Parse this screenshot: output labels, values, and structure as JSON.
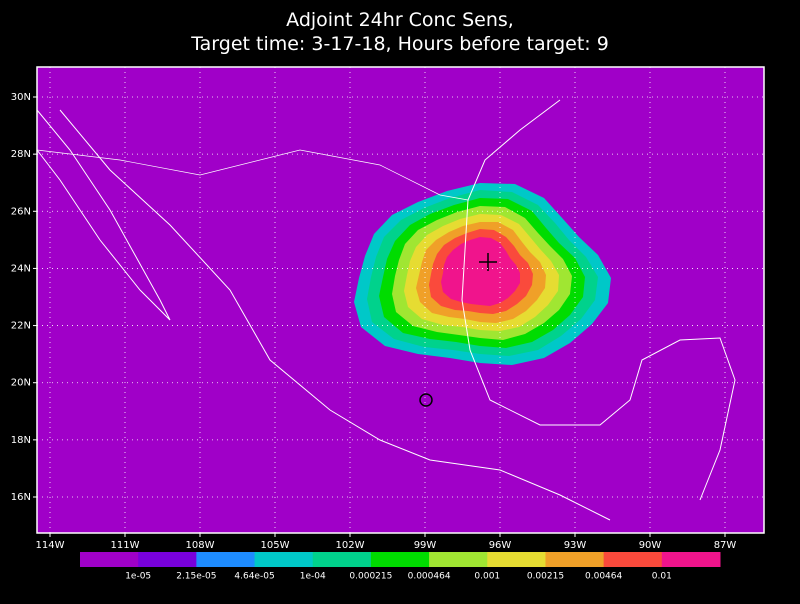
{
  "title": {
    "line1": "Adjoint 24hr Conc Sens,",
    "line2": "Target time: 3-17-18, Hours before target: 9"
  },
  "map": {
    "xlim": [
      -114.52,
      -85.44
    ],
    "ylim": [
      14.74,
      31.05
    ],
    "xticks": [
      {
        "value": -114,
        "label": "114W"
      },
      {
        "value": -111,
        "label": "111W"
      },
      {
        "value": -108,
        "label": "108W"
      },
      {
        "value": -105,
        "label": "105W"
      },
      {
        "value": -102,
        "label": "102W"
      },
      {
        "value": -99,
        "label": "99W"
      },
      {
        "value": -96,
        "label": "96W"
      },
      {
        "value": -93,
        "label": "93W"
      },
      {
        "value": -90,
        "label": "90W"
      },
      {
        "value": -87,
        "label": "87W"
      }
    ],
    "yticks": [
      {
        "value": 16,
        "label": "16N"
      },
      {
        "value": 18,
        "label": "18N"
      },
      {
        "value": 20,
        "label": "20N"
      },
      {
        "value": 22,
        "label": "22N"
      },
      {
        "value": 24,
        "label": "24N"
      },
      {
        "value": 26,
        "label": "26N"
      },
      {
        "value": 28,
        "label": "28N"
      },
      {
        "value": 30,
        "label": "30N"
      }
    ],
    "grid": true
  },
  "colorbar": {
    "colors": [
      "#a000c8",
      "#7800dc",
      "#1e8cff",
      "#00c8c8",
      "#00d28c",
      "#00dc00",
      "#a0e632",
      "#e6dc32",
      "#f0a028",
      "#fa4a3c",
      "#f0148c"
    ],
    "labels": [
      "1e-05",
      "2.15e-05",
      "4.64e-05",
      "1e-04",
      "0.000215",
      "0.000464",
      "0.001",
      "0.00215",
      "0.00464",
      "0.01"
    ]
  }
}
